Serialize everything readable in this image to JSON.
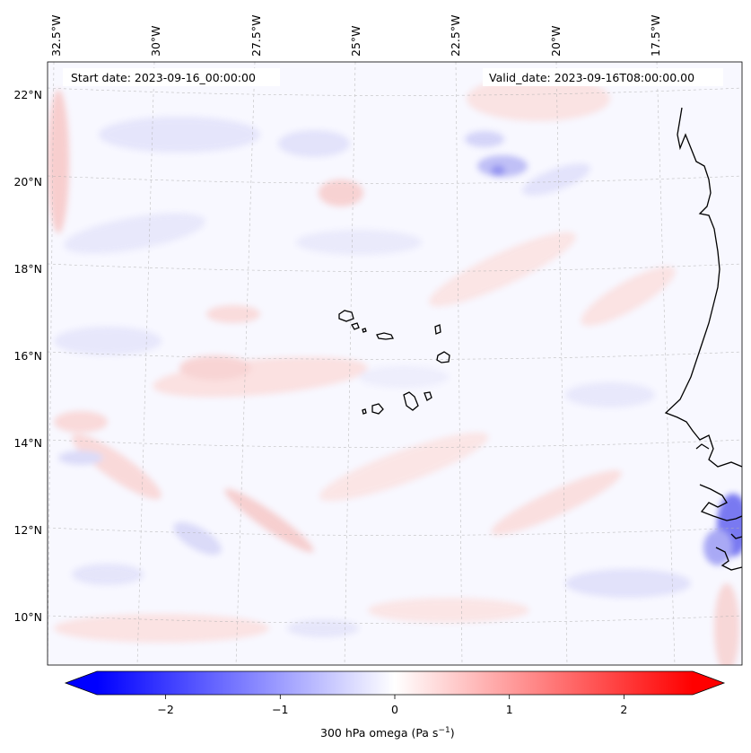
{
  "map": {
    "start_date_label": "Start date: 2023-09-16_00:00:00",
    "valid_date_label": "Valid_date: 2023-09-16T08:00:00.00",
    "lon_labels": [
      "32.5°W",
      "30°W",
      "27.5°W",
      "25°W",
      "22.5°W",
      "20°W",
      "17.5°W"
    ],
    "lat_labels": [
      "22°N",
      "20°N",
      "18°N",
      "16°N",
      "14°N",
      "12°N",
      "10°N"
    ],
    "extent": {
      "lon_min": -33.5,
      "lon_max": -16.0,
      "lat_min": 8.8,
      "lat_max": 22.8
    },
    "field": "300 hPa omega",
    "coastline_color": "#000000",
    "gridline_color": "#b0b0b0"
  },
  "colorbar": {
    "label_main": "300 hPa omega (Pa s",
    "label_sup": "−1",
    "label_close": ")",
    "ticks": [
      "−2",
      "−1",
      "0",
      "1",
      "2"
    ],
    "tick_values": [
      -2,
      -1,
      0,
      1,
      2
    ],
    "vmin": -2.6,
    "vmax": 2.6,
    "cmap": "bwr",
    "colors": {
      "low": "#0000ff",
      "mid": "#ffffff",
      "high": "#ff0000"
    }
  }
}
